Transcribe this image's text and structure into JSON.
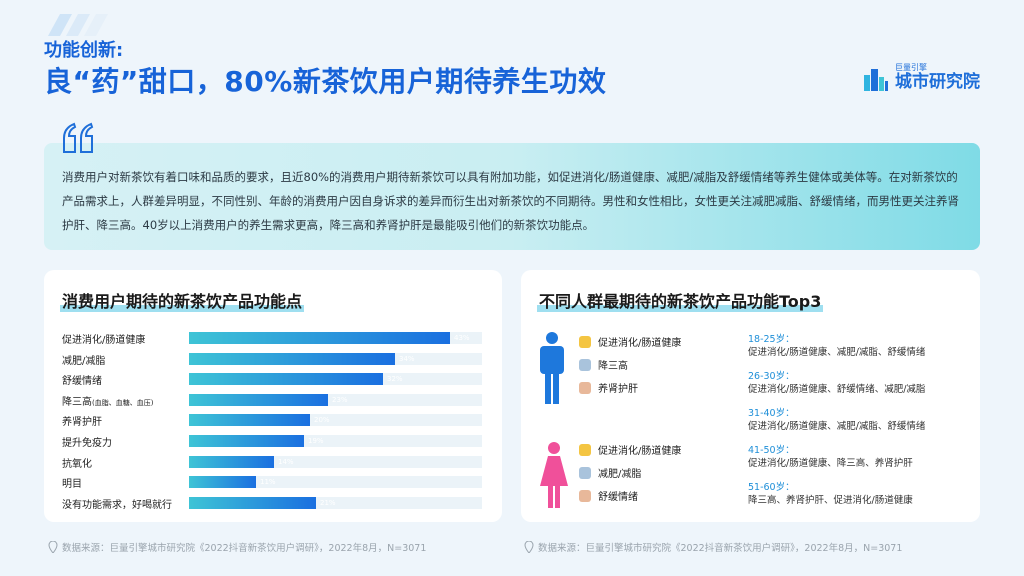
{
  "header": {
    "subtitle": "功能创新:",
    "title": "良“药”甜口，80%新茶饮用户期待养生功效"
  },
  "logo": {
    "small_text": "巨量引擎",
    "big_text": "城市研究院",
    "icon": "city-buildings-icon"
  },
  "summary": {
    "text": "消费用户对新茶饮有着口味和品质的要求，且近80%的消费用户期待新茶饮可以具有附加功能，如促进消化/肠道健康、减肥/减脂及舒缓情绪等养生健体或美体等。在对新茶饮的产品需求上，人群差异明显，不同性别、年龄的消费用户因自身诉求的差异而衍生出对新茶饮的不同期待。男性和女性相比，女性更关注减肥减脂、舒缓情绪，而男性更关注养肾护肝、降三高。40岁以上消费用户的养生需求更高，降三高和养肾护肝是最能吸引他们的新茶饮功能点。"
  },
  "left_card": {
    "title": "消费用户期待的新茶饮产品功能点"
  },
  "chart_data": {
    "type": "bar",
    "orientation": "horizontal",
    "categories": [
      "促进消化/肠道健康",
      "减肥/减脂",
      "舒缓情绪",
      "降三高",
      "养肾护肝",
      "提升免疫力",
      "抗氧化",
      "明目",
      "没有功能需求，好喝就行"
    ],
    "category_notes": [
      "",
      "",
      "",
      "(血脂、血糖、血压)",
      "",
      "",
      "",
      "",
      ""
    ],
    "values": [
      43,
      34,
      32,
      23,
      20,
      19,
      14,
      11,
      21
    ],
    "value_labels": [
      "43%",
      "34%",
      "32%",
      "23%",
      "20%",
      "19%",
      "14%",
      "11%",
      "21%"
    ],
    "xlim": [
      0,
      43
    ]
  },
  "right_card": {
    "title": "不同人群最期待的新茶饮产品功能Top3",
    "male": {
      "icon": "male-person-icon",
      "color": "#1e78dc",
      "items": [
        "促进消化/肠道健康",
        "降三高",
        "养肾护肝"
      ]
    },
    "female": {
      "icon": "female-person-icon",
      "color": "#f0509a",
      "items": [
        "促进消化/肠道健康",
        "减肥/减脂",
        "舒缓情绪"
      ]
    },
    "cup_colors": [
      "#f4c542",
      "#a9c3dc",
      "#e8b89a"
    ],
    "age_groups": [
      {
        "label": "18-25岁：",
        "items": "促进消化/肠道健康、减肥/减脂、舒缓情绪"
      },
      {
        "label": "26-30岁：",
        "items": "促进消化/肠道健康、舒缓情绪、减肥/减脂"
      },
      {
        "label": "31-40岁：",
        "items": "促进消化/肠道健康、减肥/减脂、舒缓情绪"
      },
      {
        "label": "41-50岁：",
        "items": "促进消化/肠道健康、降三高、养肾护肝"
      },
      {
        "label": "51-60岁：",
        "items": "降三高、养肾护肝、促进消化/肠道健康"
      }
    ]
  },
  "sources": {
    "left": "数据来源：巨量引擎城市研究院《2022抖音新茶饮用户调研》，2022年8月，N=3071",
    "right": "数据来源：巨量引擎城市研究院《2022抖音新茶饮用户调研》，2022年8月，N=3071"
  },
  "colors": {
    "accent": "#1763d8",
    "bar_start": "#3ec4d6",
    "bar_end": "#1a6fe0",
    "age_label": "#1f8fd8"
  }
}
